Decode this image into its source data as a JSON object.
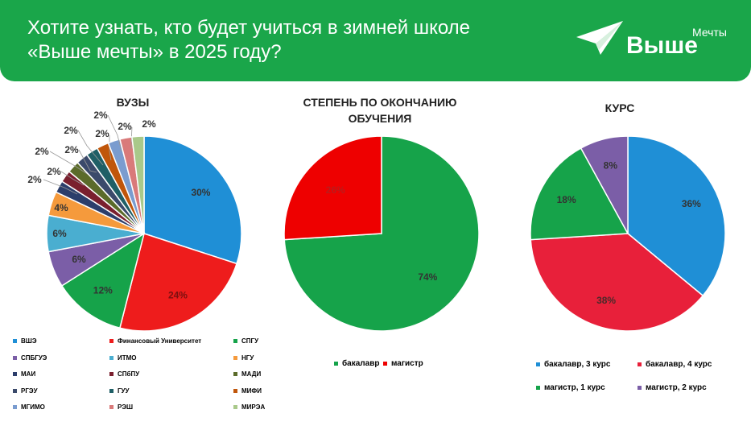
{
  "header": {
    "title_line1": "Хотите узнать, кто будет учиться в зимней школе",
    "title_line2": "«Выше мечты» в 2025 году?",
    "logo_main": "Выше",
    "logo_small": "Мечты",
    "background": "#1aa64a"
  },
  "chart_data": [
    {
      "type": "pie",
      "title": "ВУЗЫ",
      "labels": [
        "ВШЭ",
        "Финансовый Университет",
        "СПГУ",
        "СПБГУЭ",
        "ИТМО",
        "НГУ",
        "МАИ",
        "СПбПУ",
        "МАДИ",
        "РГЭУ",
        "ГУУ",
        "МИФИ",
        "МГИМО",
        "РЭШ",
        "МИРЭА"
      ],
      "values": [
        30,
        24,
        12,
        6,
        6,
        4,
        2,
        2,
        2,
        2,
        2,
        2,
        2,
        2,
        2
      ],
      "value_labels": [
        "30%",
        "24%",
        "12%",
        "6%",
        "6%",
        "4%",
        "2%",
        "2%",
        "2%",
        "2%",
        "2%",
        "2%",
        "2%",
        "2%",
        "2%"
      ],
      "colors": [
        "#1f8fd6",
        "#ee1c1c",
        "#16a34a",
        "#7b5ea7",
        "#4aaed0",
        "#f59a3c",
        "#2c3e6b",
        "#7a1f2e",
        "#5b6b2a",
        "#3b4a6b",
        "#1f5f66",
        "#c0560b",
        "#7a9ccf",
        "#d97a7a",
        "#a9c98a"
      ],
      "legend": "bottom"
    },
    {
      "type": "pie",
      "title": "СТЕПЕНЬ ПО ОКОНЧАНИЮ ОБУЧЕНИЯ",
      "labels": [
        "бакалавр",
        "магистр"
      ],
      "values": [
        74,
        26
      ],
      "value_labels": [
        "74%",
        "26%"
      ],
      "colors": [
        "#16a34a",
        "#ee0000"
      ],
      "legend": "bottom"
    },
    {
      "type": "pie",
      "title": "КУРС",
      "labels": [
        "бакалавр, 3 курс",
        "бакалавр, 4 курс",
        "магистр, 1 курс",
        "магистр, 2 курс"
      ],
      "values": [
        36,
        38,
        18,
        8
      ],
      "value_labels": [
        "36%",
        "38%",
        "18%",
        "8%"
      ],
      "colors": [
        "#1f8fd6",
        "#e8203a",
        "#16a34a",
        "#7b5ea7"
      ],
      "legend": "bottom"
    }
  ]
}
